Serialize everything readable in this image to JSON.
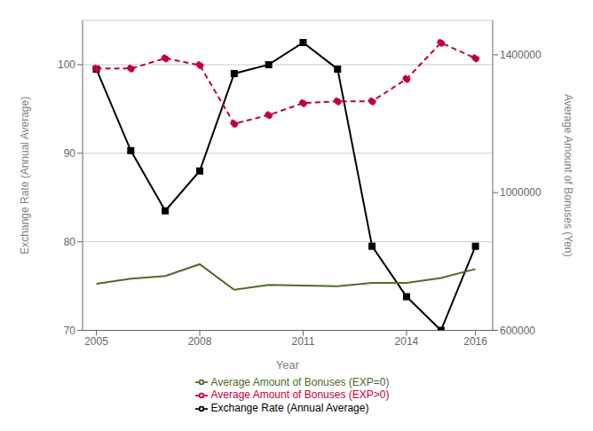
{
  "chart_data": {
    "type": "line",
    "xlabel": "Year",
    "ylabel": "Exchange Rate (Annual Average)",
    "y2label": "Average Amount of Bonuses (Yen)",
    "x": [
      2005,
      2006,
      2007,
      2008,
      2009,
      2010,
      2011,
      2012,
      2013,
      2014,
      2015,
      2016
    ],
    "xlim": [
      2004.6,
      2016.5
    ],
    "xticks": [
      2005,
      2008,
      2011,
      2014,
      2016
    ],
    "ylim": [
      70,
      105
    ],
    "yticks": [
      70,
      80,
      90,
      100
    ],
    "y2lim": [
      600000,
      1500000
    ],
    "y2ticks": [
      600000,
      1000000,
      1400000
    ],
    "grid": "y",
    "legend": "bottom",
    "series": [
      {
        "name": "Exchange Rate (Annual Average)",
        "color": "#000000",
        "values": [
          99.5,
          90.3,
          83.5,
          88.0,
          99.0,
          100.0,
          102.5,
          99.5,
          79.5,
          73.8,
          70.0,
          79.5
        ],
        "axis": "y",
        "marker": "square",
        "line_style": "solid"
      },
      {
        "name": "Average Amount of Bonuses (EXP>0)",
        "color": "#c0003c",
        "values": [
          1360000,
          1360000,
          1390000,
          1370000,
          1200000,
          1225000,
          1260000,
          1265000,
          1265000,
          1330000,
          1435000,
          1390000
        ],
        "axis": "y2",
        "marker": "circle",
        "line_style": "dashed"
      },
      {
        "name": "Average Amount of Bonuses (EXP=0)",
        "color": "#4e6b28",
        "values": [
          735000,
          750000,
          758000,
          792000,
          718000,
          732000,
          730000,
          728000,
          738000,
          738000,
          752000,
          778000
        ],
        "axis": "y2",
        "marker": "none",
        "line_style": "solid"
      }
    ]
  }
}
